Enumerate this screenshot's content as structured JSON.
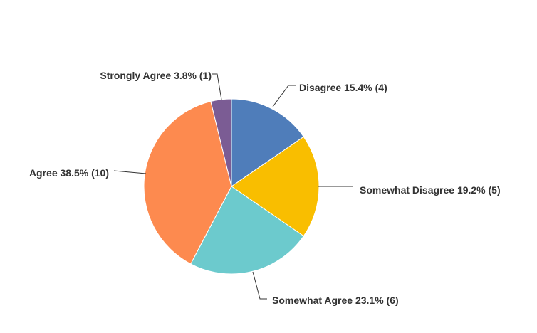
{
  "chart_data": {
    "type": "pie",
    "start_angle": "12 o'clock",
    "direction": "clockwise",
    "slices": [
      {
        "label": "Disagree",
        "percent": 15.4,
        "count": 4,
        "color": "#4f7dba",
        "text": "Disagree 15.4% (4)"
      },
      {
        "label": "Somewhat Disagree",
        "percent": 19.2,
        "count": 5,
        "color": "#f9be00",
        "text": "Somewhat Disagree 19.2% (5)"
      },
      {
        "label": "Somewhat Agree",
        "percent": 23.1,
        "count": 6,
        "color": "#6ccacd",
        "text": "Somewhat Agree 23.1% (6)"
      },
      {
        "label": "Agree",
        "percent": 38.5,
        "count": 10,
        "color": "#fd8a4f",
        "text": "Agree 38.5% (10)"
      },
      {
        "label": "Strongly Agree",
        "percent": 3.8,
        "count": 1,
        "color": "#7b5c94",
        "text": "Strongly Agree 3.8% (1)"
      }
    ]
  }
}
